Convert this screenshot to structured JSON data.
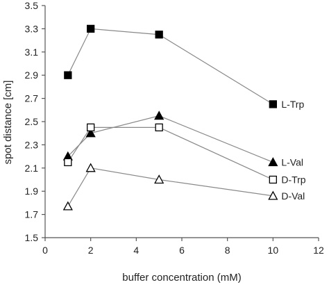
{
  "chart_data": {
    "type": "line",
    "xlabel": "buffer concentration (mM)",
    "ylabel": "spot distance [cm]",
    "xlim": [
      0,
      12
    ],
    "ylim": [
      1.5,
      3.5
    ],
    "xticks": [
      0,
      2,
      4,
      6,
      8,
      10,
      12
    ],
    "yticks": [
      1.5,
      1.7,
      1.9,
      2.1,
      2.3,
      2.5,
      2.7,
      2.9,
      3.1,
      3.3,
      3.5
    ],
    "x": [
      1,
      2,
      5,
      10
    ],
    "grid": false,
    "legend": "direct labels at line ends",
    "series": [
      {
        "name": "L-Trp",
        "marker": "filled-square",
        "values": [
          2.9,
          3.3,
          3.25,
          2.65
        ]
      },
      {
        "name": "L-Val",
        "marker": "filled-triangle",
        "values": [
          2.2,
          2.4,
          2.55,
          2.15
        ]
      },
      {
        "name": "D-Trp",
        "marker": "open-square",
        "values": [
          2.15,
          2.45,
          2.45,
          2.0
        ]
      },
      {
        "name": "D-Val",
        "marker": "open-triangle",
        "values": [
          1.77,
          2.1,
          2.0,
          1.86
        ]
      }
    ],
    "colors": {
      "line": "#888888",
      "marker": "#000000",
      "axis": "#555555",
      "text": "#222222"
    }
  }
}
